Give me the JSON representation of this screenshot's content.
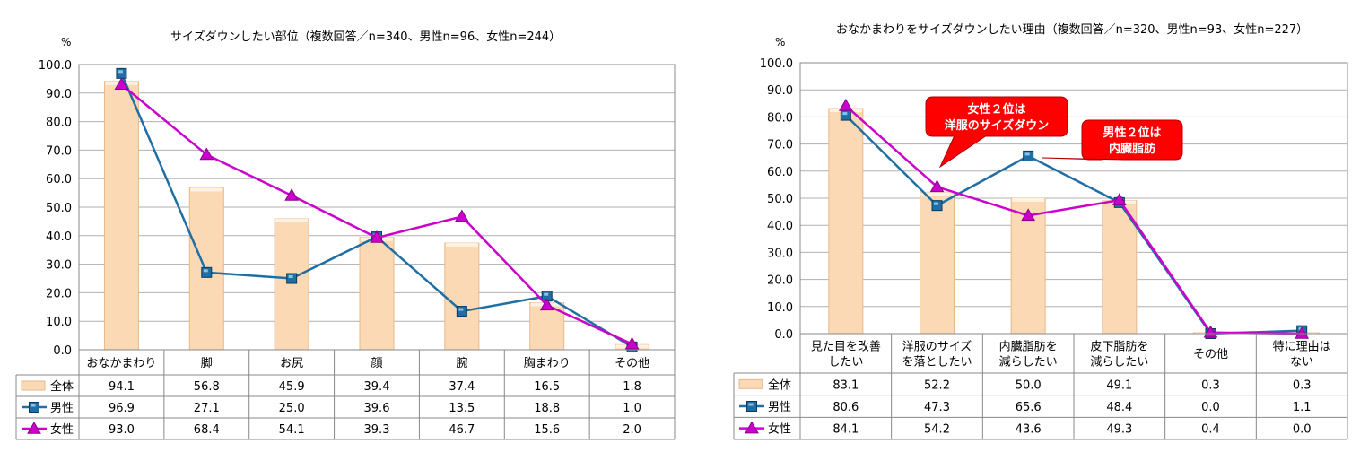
{
  "charts": [
    {
      "title": "サイズダウンしたい部位（複数回答／n=340、男性n=96、女性n=244）",
      "unit": "%",
      "chart_data": {
        "type": "bar",
        "categories": [
          "おなかまわり",
          "脚",
          "お尻",
          "顔",
          "腕",
          "胸まわり",
          "その他"
        ],
        "series": [
          {
            "name": "全体",
            "type": "bar",
            "values": [
              94.1,
              56.8,
              45.9,
              39.4,
              37.4,
              16.5,
              1.8
            ]
          },
          {
            "name": "男性",
            "type": "line",
            "marker": "square",
            "values": [
              96.9,
              27.1,
              25.0,
              39.6,
              13.5,
              18.8,
              1.0
            ]
          },
          {
            "name": "女性",
            "type": "line",
            "marker": "triangle",
            "values": [
              93.0,
              68.4,
              54.1,
              39.3,
              46.7,
              15.6,
              2.0
            ]
          }
        ],
        "ylim": [
          0,
          100
        ],
        "yticks": [
          "100.0",
          "90.0",
          "80.0",
          "70.0",
          "60.0",
          "50.0",
          "40.0",
          "30.0",
          "20.0",
          "10.0",
          "0.0"
        ],
        "grid": true,
        "legend": "data-table",
        "colors": {
          "bar": "#fbd9b5",
          "bar_edge": "#e8b88a",
          "male": "#1f6fa5",
          "female": "#cc00cc"
        },
        "table": [
          [
            "94.1",
            "56.8",
            "45.9",
            "39.4",
            "37.4",
            "16.5",
            "1.8"
          ],
          [
            "96.9",
            "27.1",
            "25.0",
            "39.6",
            "13.5",
            "18.8",
            "1.0"
          ],
          [
            "93.0",
            "68.4",
            "54.1",
            "39.3",
            "46.7",
            "15.6",
            "2.0"
          ]
        ]
      },
      "callouts": []
    },
    {
      "title": "おなかまわりをサイズダウンしたい理由（複数回答／n=320、男性n=93、女性n=227）",
      "unit": "%",
      "chart_data": {
        "type": "bar",
        "categories": [
          [
            "見た目を改善",
            "したい"
          ],
          [
            "洋服のサイズ",
            "を落としたい"
          ],
          [
            "内臓脂肪を",
            "減らしたい"
          ],
          [
            "皮下脂肪を",
            "減らしたい"
          ],
          [
            "その他"
          ],
          [
            "特に理由は",
            "ない"
          ]
        ],
        "series": [
          {
            "name": "全体",
            "type": "bar",
            "values": [
              83.1,
              52.2,
              50.0,
              49.1,
              0.3,
              0.3
            ]
          },
          {
            "name": "男性",
            "type": "line",
            "marker": "square",
            "values": [
              80.6,
              47.3,
              65.6,
              48.4,
              0.0,
              1.1
            ]
          },
          {
            "name": "女性",
            "type": "line",
            "marker": "triangle",
            "values": [
              84.1,
              54.2,
              43.6,
              49.3,
              0.4,
              0.0
            ]
          }
        ],
        "ylim": [
          0,
          100
        ],
        "yticks": [
          "100.0",
          "90.0",
          "80.0",
          "70.0",
          "60.0",
          "50.0",
          "40.0",
          "30.0",
          "20.0",
          "10.0",
          "0.0"
        ],
        "grid": true,
        "legend": "data-table",
        "colors": {
          "bar": "#fbd9b5",
          "bar_edge": "#e8b88a",
          "male": "#1f6fa5",
          "female": "#cc00cc"
        },
        "table": [
          [
            "83.1",
            "52.2",
            "50.0",
            "49.1",
            "0.3",
            "0.3"
          ],
          [
            "80.6",
            "47.3",
            "65.6",
            "48.4",
            "0.0",
            "1.1"
          ],
          [
            "84.1",
            "54.2",
            "43.6",
            "49.3",
            "0.4",
            "0.0"
          ]
        ]
      },
      "callouts": [
        {
          "lines": [
            "女性２位は",
            "洋服のサイズダウン"
          ],
          "color": "#ff0000"
        },
        {
          "lines": [
            "男性２位は",
            "内臓脂肪"
          ],
          "color": "#ff0000"
        }
      ]
    }
  ]
}
